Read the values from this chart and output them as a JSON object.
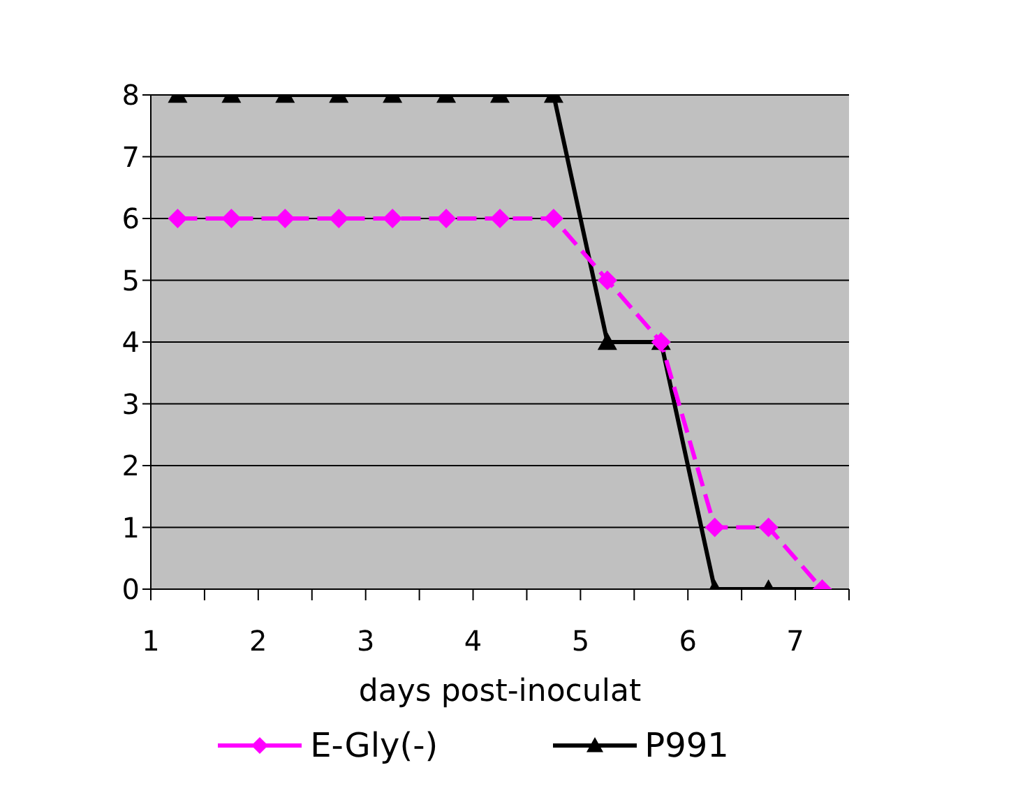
{
  "chart_data": {
    "type": "line",
    "xlabel": "days post-inoculat",
    "x": [
      1.25,
      1.75,
      2.25,
      2.75,
      3.25,
      3.75,
      4.25,
      4.75,
      5.25,
      5.75,
      6.25,
      6.75,
      7.25
    ],
    "series": [
      {
        "name": "E-Gly(-)",
        "color": "#ff00ff",
        "marker": "diamond",
        "line_style": "dashed",
        "values": [
          6,
          6,
          6,
          6,
          6,
          6,
          6,
          6,
          5,
          4,
          1,
          1,
          0
        ]
      },
      {
        "name": "P991",
        "color": "#000000",
        "marker": "triangle",
        "line_style": "solid",
        "values": [
          8,
          8,
          8,
          8,
          8,
          8,
          8,
          8,
          4,
          4,
          0,
          0,
          0
        ]
      }
    ],
    "xlim": [
      1,
      7.5
    ],
    "xticks": [
      1,
      {
        "value": 1.5,
        "label": null
      },
      2,
      {
        "value": 2.5,
        "label": null
      },
      3,
      {
        "value": 3.5,
        "label": null
      },
      4,
      {
        "value": 4.5,
        "label": null
      },
      5,
      {
        "value": 5.5,
        "label": null
      },
      6,
      {
        "value": 6.5,
        "label": null
      },
      7,
      {
        "value": 7.5,
        "label": null
      }
    ],
    "ylim": [
      0,
      8
    ],
    "yticks": [
      0,
      1,
      2,
      3,
      4,
      5,
      6,
      7,
      8
    ],
    "grid": "y",
    "legend": "bottom"
  }
}
